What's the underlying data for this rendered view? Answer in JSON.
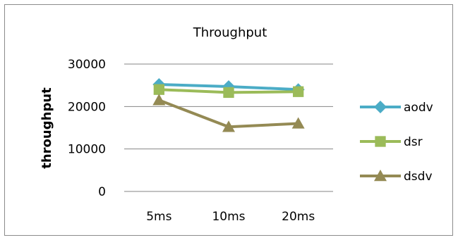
{
  "chart_data": {
    "type": "line",
    "title": "Throughput",
    "xlabel": "",
    "ylabel": "throughput",
    "categories": [
      "5ms",
      "10ms",
      "20ms"
    ],
    "ylim": [
      0,
      30000
    ],
    "yticks": [
      "0",
      "10000",
      "20000",
      "30000"
    ],
    "grid": "horizontal",
    "legend": "right",
    "series": [
      {
        "name": "aodv",
        "values": [
          25200,
          24700,
          24000
        ],
        "color": "#4bacc6",
        "marker": "diamond"
      },
      {
        "name": "dsr",
        "values": [
          24000,
          23300,
          23500
        ],
        "color": "#9bbb59",
        "marker": "square"
      },
      {
        "name": "dsdv",
        "values": [
          21500,
          15200,
          16000
        ],
        "color": "#948a54",
        "marker": "triangle"
      }
    ]
  }
}
